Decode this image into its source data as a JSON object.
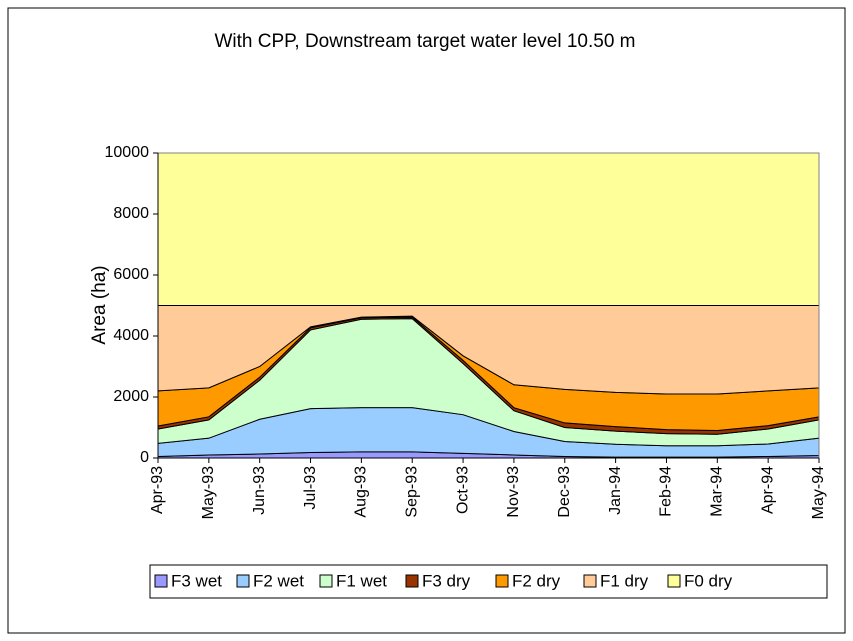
{
  "chart_data": {
    "type": "stacked_area",
    "title": "With CPP, Downstream target water level 10.50 m",
    "y_label": "Area (ha)",
    "categories": [
      "Apr-93",
      "May-93",
      "Jun-93",
      "Jul-93",
      "Aug-93",
      "Sep-93",
      "Oct-93",
      "Nov-93",
      "Dec-93",
      "Jan-94",
      "Feb-94",
      "Mar-94",
      "Apr-94",
      "May-94"
    ],
    "series": [
      {
        "name": "F3 wet",
        "color": "#9999ff",
        "values": [
          50,
          100,
          130,
          180,
          200,
          200,
          150,
          100,
          50,
          30,
          30,
          30,
          50,
          80
        ]
      },
      {
        "name": "F2 wet",
        "color": "#99ccff",
        "values": [
          430,
          550,
          1140,
          1440,
          1450,
          1450,
          1270,
          770,
          490,
          420,
          370,
          370,
          410,
          570
        ]
      },
      {
        "name": "F1 wet",
        "color": "#ccffcc",
        "values": [
          470,
          600,
          1280,
          2580,
          2900,
          2920,
          1680,
          680,
          460,
          430,
          400,
          380,
          490,
          600
        ]
      },
      {
        "name": "F3 dry",
        "color": "#993300",
        "values": [
          100,
          100,
          100,
          70,
          50,
          50,
          100,
          100,
          150,
          150,
          130,
          120,
          110,
          100
        ]
      },
      {
        "name": "F2 dry",
        "color": "#ff9900",
        "values": [
          1150,
          950,
          350,
          30,
          20,
          30,
          150,
          750,
          1100,
          1120,
          1170,
          1200,
          1140,
          950
        ]
      },
      {
        "name": "F1 dry",
        "color": "#ffcc99",
        "values": [
          2800,
          2700,
          2000,
          700,
          380,
          350,
          1650,
          2600,
          2750,
          2850,
          2900,
          2900,
          2800,
          2700
        ]
      },
      {
        "name": "F0 dry",
        "color": "#ffff99",
        "values": [
          5000,
          5000,
          5000,
          5000,
          5000,
          5000,
          5000,
          5000,
          5000,
          5000,
          5000,
          5000,
          5000,
          5000
        ]
      }
    ],
    "ylim": [
      0,
      10000
    ],
    "yticks": [
      0,
      2000,
      4000,
      6000,
      8000,
      10000
    ],
    "legend": "bottom"
  }
}
